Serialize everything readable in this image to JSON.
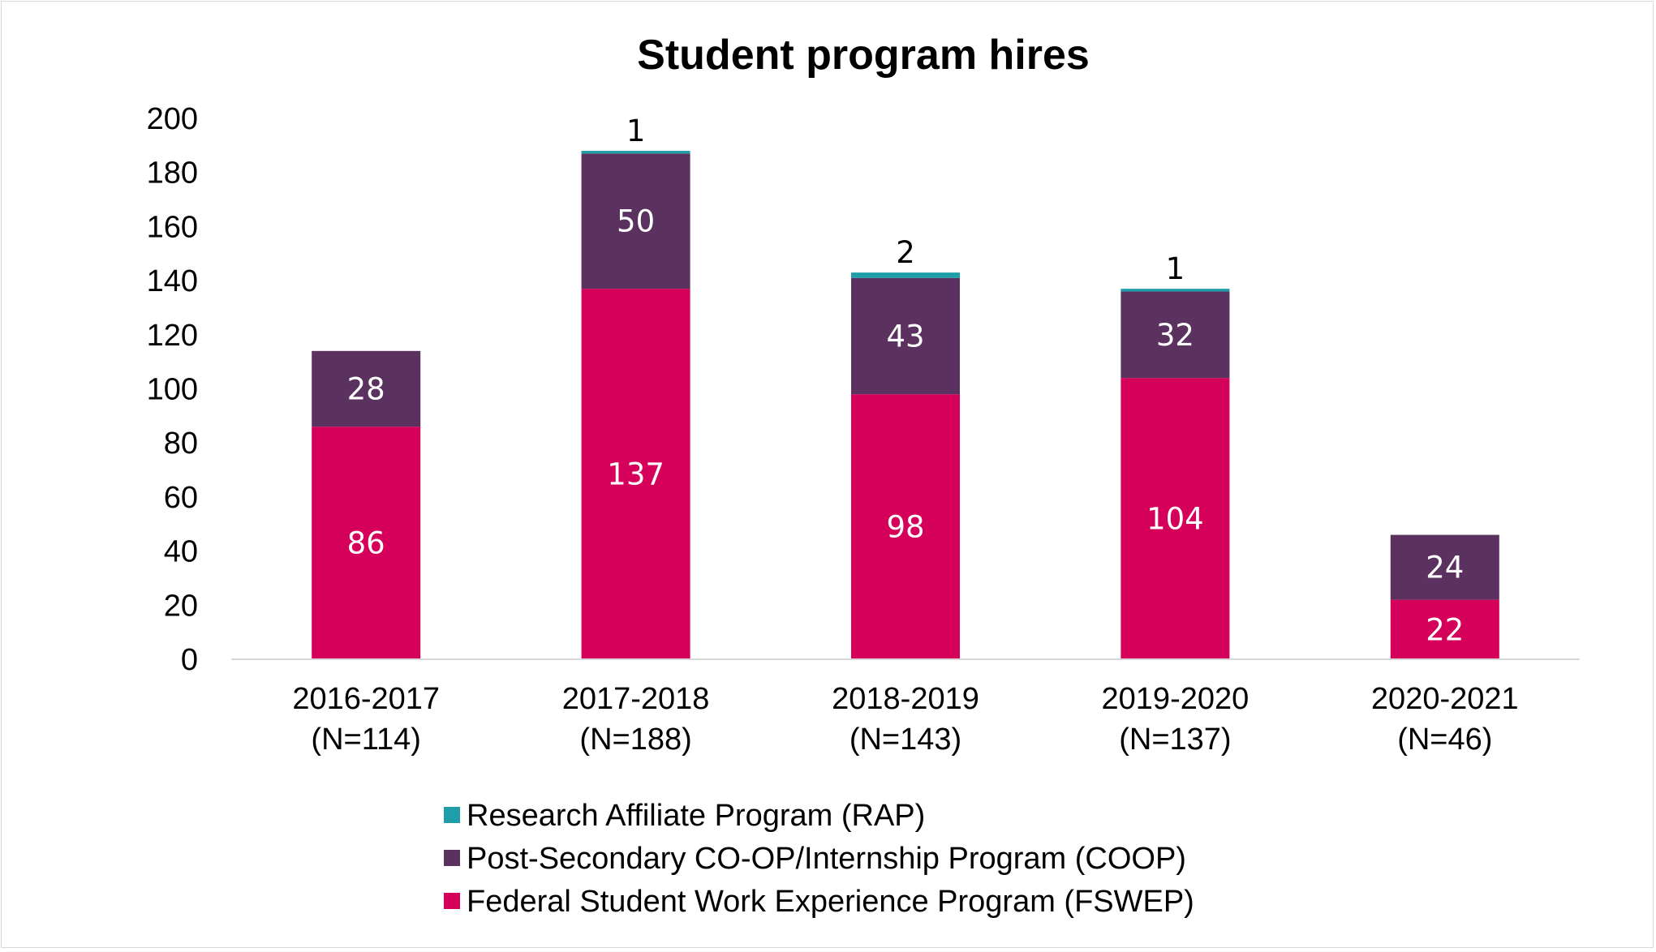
{
  "chart_data": {
    "type": "bar",
    "stacked": true,
    "title": "Student program hires",
    "xlabel": "",
    "ylabel": "",
    "ylim": [
      0,
      200
    ],
    "yticks": [
      0,
      20,
      40,
      60,
      80,
      100,
      120,
      140,
      160,
      180,
      200
    ],
    "gridlines": false,
    "categories": [
      [
        "2016-2017",
        "(N=114)"
      ],
      [
        "2017-2018",
        "(N=188)"
      ],
      [
        "2018-2019",
        "(N=143)"
      ],
      [
        "2019-2020",
        "(N=137)"
      ],
      [
        "2020-2021",
        "(N=46)"
      ]
    ],
    "series": [
      {
        "name": "Federal Student Work Experience Program (FSWEP)",
        "color": "#d4005a",
        "label_color": "#ffffff",
        "values": [
          86,
          137,
          98,
          104,
          22
        ]
      },
      {
        "name": "Post-Secondary CO-OP/Internship Program (COOP)",
        "color": "#5b3160",
        "label_color": "#ffffff",
        "values": [
          28,
          50,
          43,
          32,
          24
        ]
      },
      {
        "name": "Research Affiliate Program (RAP)",
        "color": "#1e9ea8",
        "label_color": "#000000",
        "values": [
          0,
          1,
          2,
          1,
          0
        ]
      }
    ],
    "legend": {
      "position": "bottom",
      "order": [
        2,
        1,
        0
      ]
    }
  }
}
